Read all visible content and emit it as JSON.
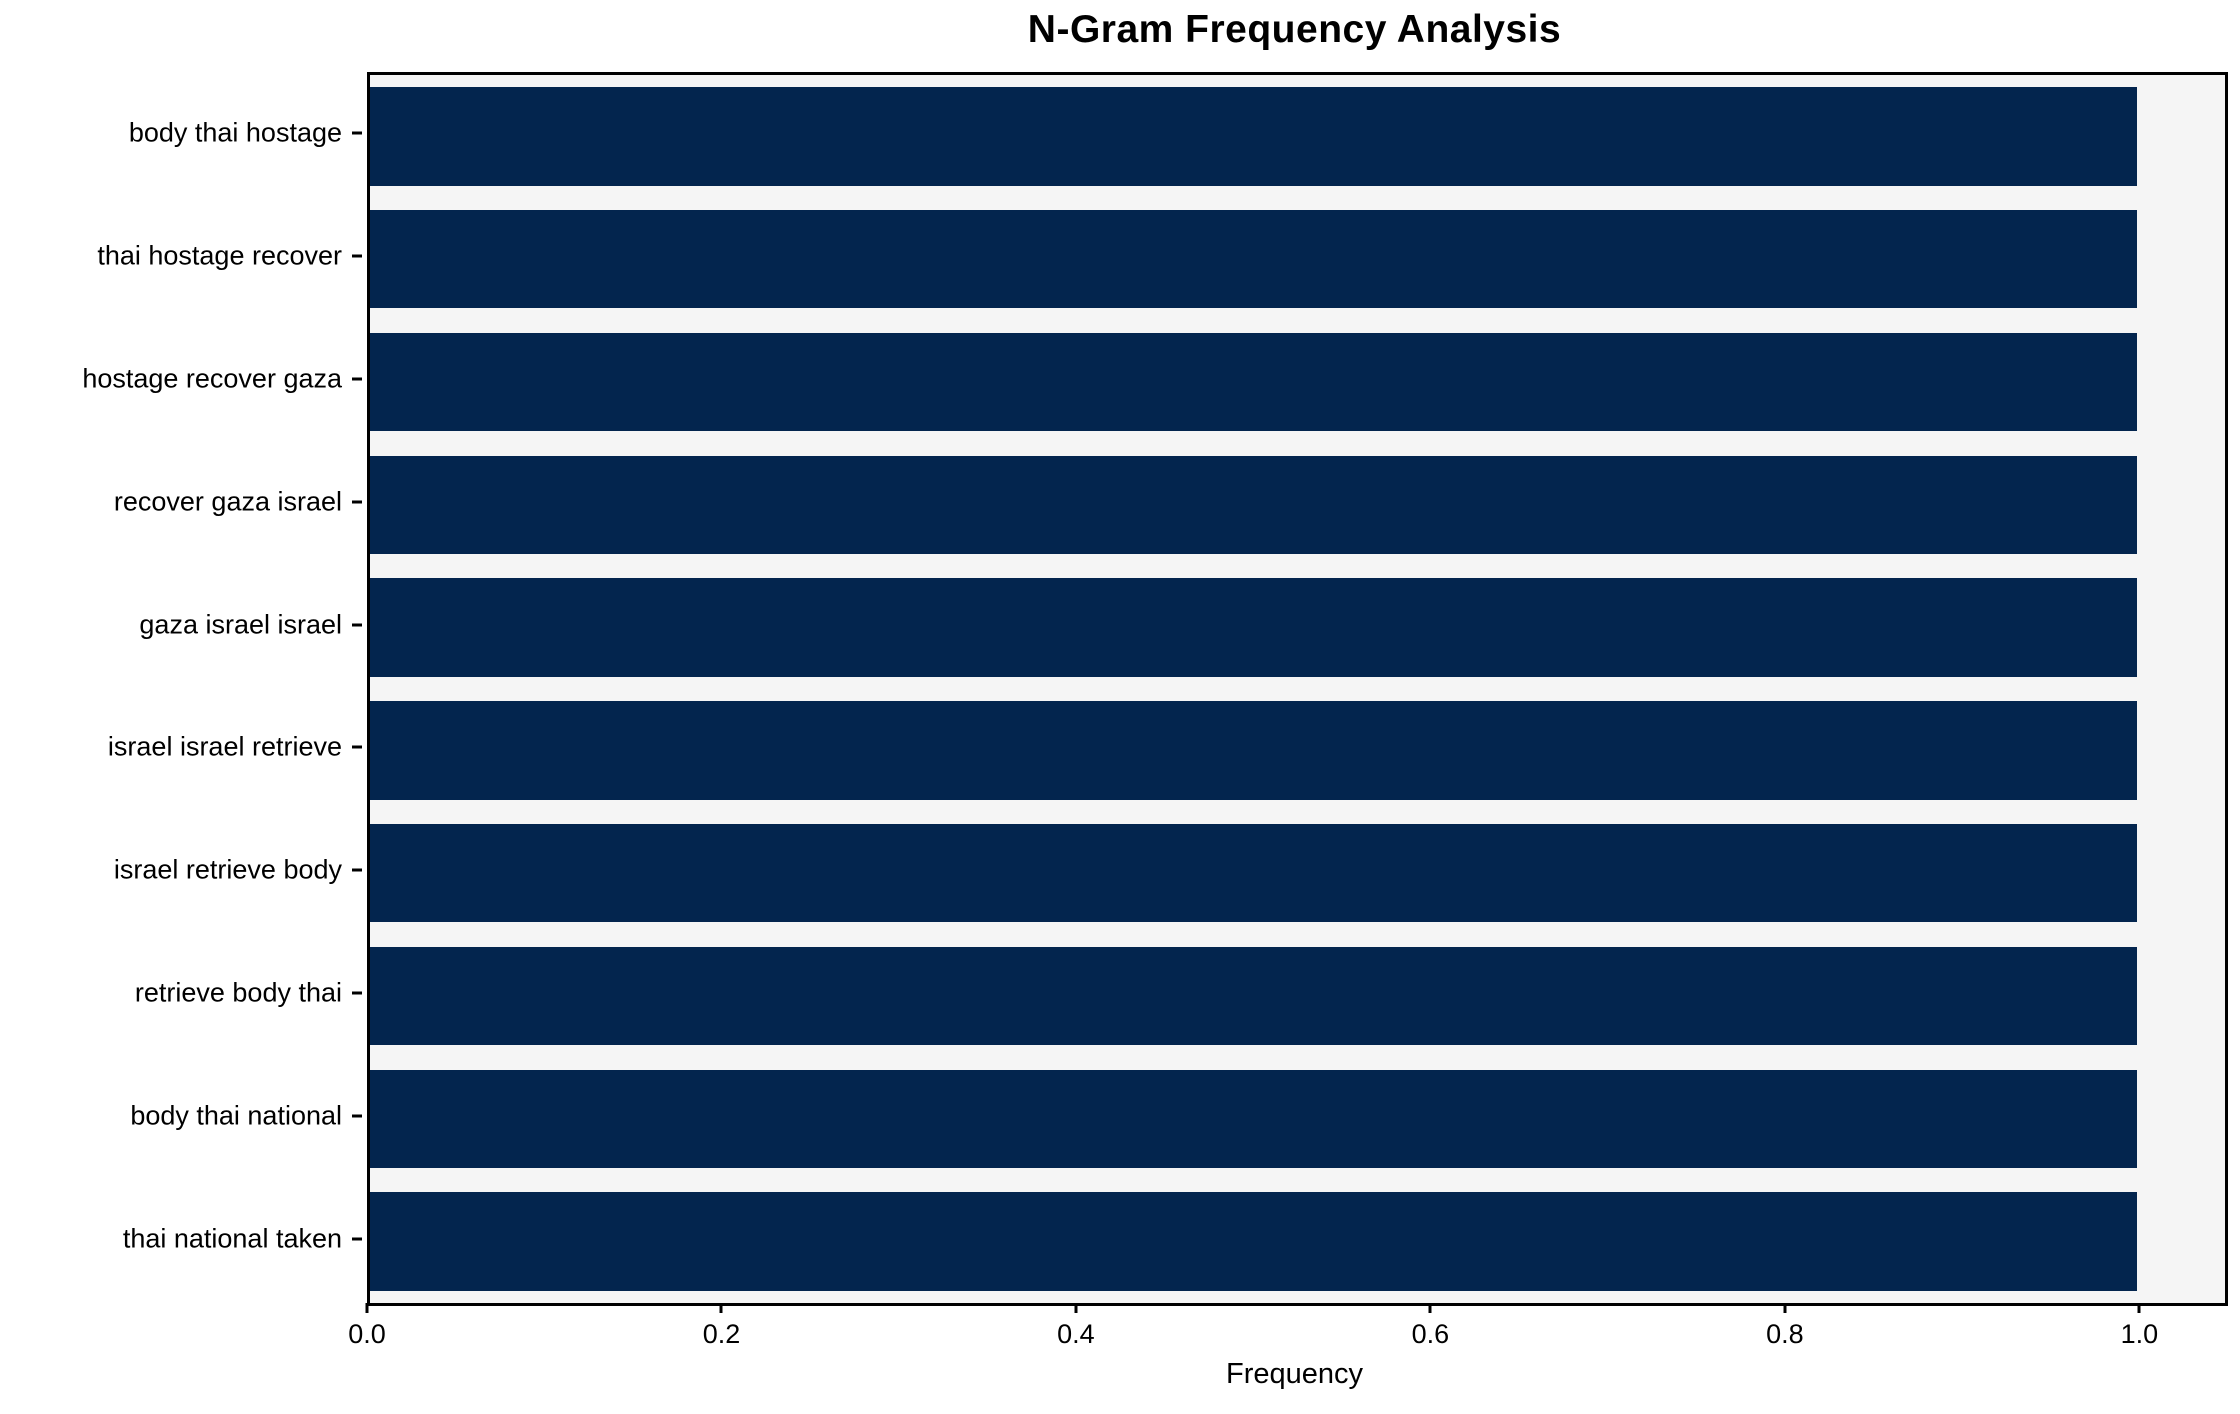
{
  "chart_data": {
    "type": "bar",
    "orientation": "horizontal",
    "title": "N-Gram Frequency Analysis",
    "xlabel": "Frequency",
    "ylabel": "",
    "categories": [
      "body thai hostage",
      "thai hostage recover",
      "hostage recover gaza",
      "recover gaza israel",
      "gaza israel israel",
      "israel israel retrieve",
      "israel retrieve body",
      "retrieve body thai",
      "body thai national",
      "thai national taken"
    ],
    "values": [
      1.0,
      1.0,
      1.0,
      1.0,
      1.0,
      1.0,
      1.0,
      1.0,
      1.0,
      1.0
    ],
    "xlim": [
      0,
      1.05
    ],
    "xticks": [
      0,
      0.2,
      0.4,
      0.6,
      0.8,
      1.0
    ],
    "xtick_labels": [
      "0.0",
      "0.2",
      "0.4",
      "0.6",
      "0.8",
      "1.0"
    ],
    "grid": false,
    "legend": null,
    "bar_color": "#03254e",
    "plot_bg": "#f5f5f5",
    "fig_bg": "#ffffff",
    "spine_color": "#000000",
    "text_color": "#000000"
  }
}
